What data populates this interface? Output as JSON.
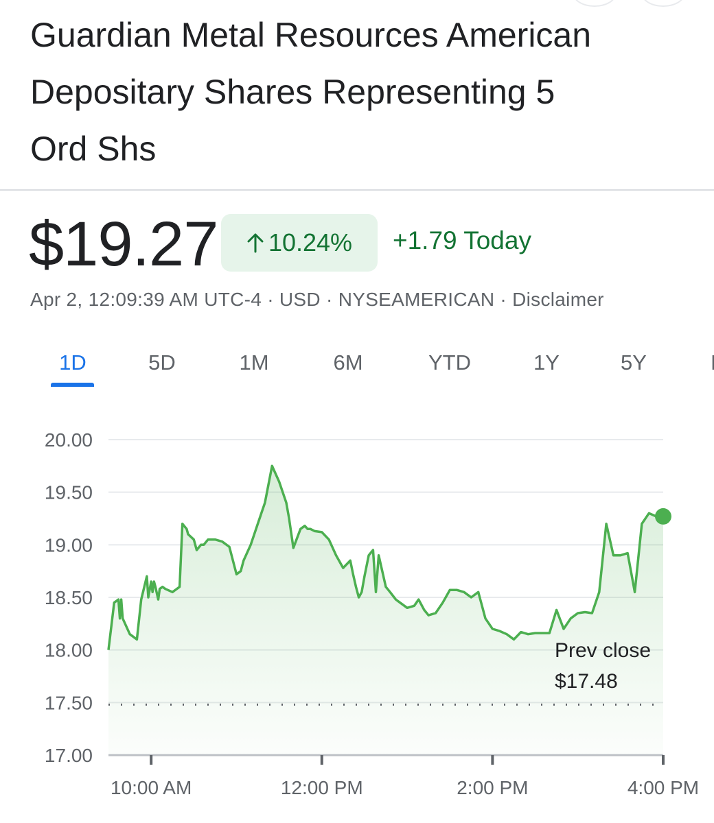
{
  "header": {
    "title_line1": "Guardian Metal Resources American",
    "title_line2": "Depositary Shares Representing 5",
    "title_line3": "Ord Shs"
  },
  "quote": {
    "price": "$19.27",
    "percent_change": "10.24%",
    "arrow_icon": "arrow-up-icon",
    "change_today": "+1.79 Today",
    "meta": "Apr 2, 12:09:39 AM UTC-4 · USD · NYSEAMERICAN · Disclaimer"
  },
  "tabs": [
    {
      "label": "1D",
      "active": true
    },
    {
      "label": "5D",
      "active": false
    },
    {
      "label": "1M",
      "active": false
    },
    {
      "label": "6M",
      "active": false
    },
    {
      "label": "YTD",
      "active": false
    },
    {
      "label": "1Y",
      "active": false
    },
    {
      "label": "5Y",
      "active": false
    },
    {
      "label": "M",
      "active": false
    }
  ],
  "colors": {
    "positive": "#137333",
    "line": "#4caf50",
    "accent": "#1a73e8"
  },
  "chart_data": {
    "type": "line",
    "ylim": [
      17.0,
      20.0
    ],
    "yticks": [
      "20.00",
      "19.50",
      "19.00",
      "18.50",
      "18.00",
      "17.50",
      "17.00"
    ],
    "xlim": [
      "9:30 AM",
      "4:00 PM"
    ],
    "xticks": [
      "10:00 AM",
      "12:00 PM",
      "2:00 PM",
      "4:00 PM"
    ],
    "prev_close": {
      "label": "Prev close",
      "value_label": "$17.48",
      "value": 17.48
    },
    "series": [
      {
        "x": [
          "9:30",
          "9:34",
          "9:37",
          "9:38",
          "9:39",
          "9:40",
          "9:45",
          "9:50",
          "9:53",
          "9:57",
          "9:58",
          "10:00",
          "10:01",
          "10:02",
          "10:03",
          "10:05",
          "10:06",
          "10:08",
          "10:10",
          "10:15",
          "10:20",
          "10:22",
          "10:25",
          "10:26",
          "10:30",
          "10:32",
          "10:35",
          "10:37",
          "10:40",
          "10:45",
          "10:50",
          "10:55",
          "11:00",
          "11:03",
          "11:05",
          "11:10",
          "11:15",
          "11:20",
          "11:25",
          "11:30",
          "11:35",
          "11:37",
          "11:40",
          "11:45",
          "11:48",
          "11:50",
          "11:52",
          "11:55",
          "12:00",
          "12:05",
          "12:10",
          "12:15",
          "12:20",
          "12:22",
          "12:24",
          "12:26",
          "12:28",
          "12:30",
          "12:33",
          "12:36",
          "12:38",
          "12:40",
          "12:45",
          "12:48",
          "12:52",
          "12:55",
          "13:00",
          "13:05",
          "13:08",
          "13:12",
          "13:15",
          "13:20",
          "13:25",
          "13:30",
          "13:35",
          "13:40",
          "13:45",
          "13:50",
          "13:55",
          "14:00",
          "14:05",
          "14:10",
          "14:15",
          "14:20",
          "14:25",
          "14:30",
          "14:35",
          "14:40",
          "14:45",
          "14:50",
          "14:55",
          "15:00",
          "15:05",
          "15:10",
          "15:15",
          "15:20",
          "15:25",
          "15:30",
          "15:35",
          "15:40",
          "15:45",
          "15:50",
          "15:55",
          "15:56",
          "15:57",
          "15:58",
          "16:00"
        ],
        "y": [
          18.0,
          18.45,
          18.48,
          18.3,
          18.48,
          18.3,
          18.15,
          18.1,
          18.48,
          18.7,
          18.5,
          18.65,
          18.55,
          18.65,
          18.6,
          18.48,
          18.58,
          18.6,
          18.58,
          18.55,
          18.6,
          19.2,
          19.15,
          19.1,
          19.05,
          18.95,
          19.0,
          19.0,
          19.05,
          19.05,
          19.03,
          18.98,
          18.72,
          18.75,
          18.85,
          19.0,
          19.2,
          19.4,
          19.75,
          19.6,
          19.4,
          19.25,
          18.97,
          19.15,
          19.18,
          19.15,
          19.15,
          19.13,
          19.12,
          19.05,
          18.9,
          18.78,
          18.85,
          18.72,
          18.6,
          18.5,
          18.55,
          18.7,
          18.9,
          18.95,
          18.55,
          18.9,
          18.6,
          18.55,
          18.48,
          18.45,
          18.4,
          18.42,
          18.48,
          18.38,
          18.33,
          18.35,
          18.45,
          18.57,
          18.57,
          18.55,
          18.5,
          18.55,
          18.3,
          18.2,
          18.18,
          18.15,
          18.1,
          18.17,
          18.15,
          18.16,
          18.16,
          18.16,
          18.38,
          18.2,
          18.3,
          18.35,
          18.36,
          18.35,
          18.55,
          19.2,
          18.9,
          18.9,
          18.92,
          18.55,
          19.2,
          19.3,
          19.27,
          19.27,
          19.27,
          19.27,
          19.27
        ]
      }
    ]
  }
}
